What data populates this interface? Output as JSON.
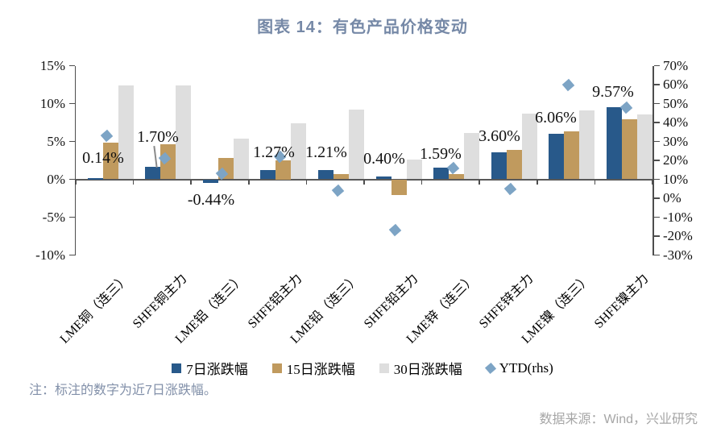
{
  "title": "图表 14：有色产品价格变动",
  "note": "注：标注的数字为近7日涨跌幅。",
  "source": "数据来源：Wind，兴业研究",
  "colors": {
    "bar_7d": "#28598a",
    "bar_15d": "#c09a5e",
    "bar_30d": "#dedede",
    "ytd_diamond": "#7da4c5",
    "title_text": "#7689a7",
    "note_text": "#8290a9",
    "source_text": "#a6a6a6",
    "axis_line": "#4d4d4d"
  },
  "chart_data": {
    "type": "bar",
    "subtype": "grouped bars with scatter overlay (YTD on right axis)",
    "categories": [
      "LME铜（连三）",
      "SHFE铜主力",
      "LME铝（连三）",
      "SHFE铝主力",
      "LME铅（连三）",
      "SHFE铅主力",
      "LME锌（连三）",
      "SHFE锌主力",
      "LME镍（连三）",
      "SHFE镍主力"
    ],
    "series": [
      {
        "name": "7日涨跌幅",
        "type": "bar",
        "axis": "left",
        "values": [
          0.14,
          1.7,
          -0.44,
          1.27,
          1.21,
          0.4,
          1.59,
          3.6,
          6.06,
          9.57
        ]
      },
      {
        "name": "15日涨跌幅",
        "type": "bar",
        "axis": "left",
        "values": [
          4.8,
          4.6,
          2.8,
          2.5,
          0.7,
          -2.1,
          0.7,
          3.9,
          6.3,
          7.9
        ]
      },
      {
        "name": "30日涨跌幅",
        "type": "bar",
        "axis": "left",
        "values": [
          12.4,
          12.4,
          5.4,
          7.4,
          9.2,
          2.6,
          6.1,
          8.7,
          9.1,
          8.6
        ]
      },
      {
        "name": "YTD(rhs)",
        "type": "scatter",
        "axis": "right",
        "values": [
          33,
          21,
          13,
          22,
          4,
          -17,
          16,
          5,
          60,
          48
        ]
      }
    ],
    "data_labels": [
      "0.14%",
      "1.70%",
      "-0.44%",
      "1.27%",
      "1.21%",
      "0.40%",
      "1.59%",
      "3.60%",
      "6.06%",
      "9.57%"
    ],
    "left_axis": {
      "min": -10,
      "max": 15,
      "step": 5,
      "tick_labels": [
        "15%",
        "10%",
        "5%",
        "0%",
        "-5%",
        "-10%"
      ],
      "unit": "%"
    },
    "right_axis": {
      "min": -30,
      "max": 70,
      "step": 10,
      "tick_labels": [
        "70%",
        "60%",
        "50%",
        "40%",
        "30%",
        "20%",
        "10%",
        "0%",
        "-10%",
        "-20%",
        "-30%"
      ],
      "unit": "%"
    },
    "baseline_left_value": 0,
    "grid": false,
    "legend_position": "bottom"
  }
}
